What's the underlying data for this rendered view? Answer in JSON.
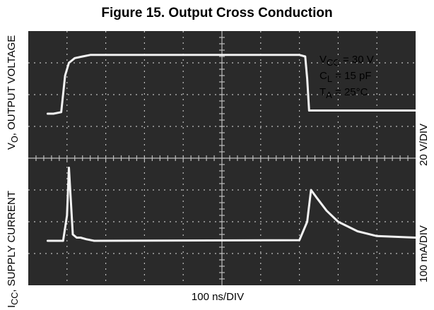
{
  "title": "Figure 15. Output Cross Conduction",
  "x_axis_label": "100 ns/DIV",
  "left_labels": {
    "top_prefix": "V",
    "top_sub": "O",
    "top_suffix": ", OUTPUT VOLTAGE",
    "bottom_prefix": "I",
    "bottom_sub": "CC",
    "bottom_suffix": ", SUPPLY CURRENT"
  },
  "right_labels": {
    "top": "20 V/DIV",
    "bottom": "100 mA/DIV"
  },
  "conditions": [
    {
      "sym": "V",
      "sub": "CC",
      "rest": " = 30 V"
    },
    {
      "sym": "C",
      "sub": "L",
      "rest": " = 15 pF"
    },
    {
      "sym": "T",
      "sub": "A",
      "rest": " = 25°C"
    }
  ],
  "colors": {
    "screen": "#2a2a2a",
    "graticule": "#bdbdbd",
    "trace": "#f2f2f2"
  },
  "chart_data": {
    "type": "line",
    "x_divisions": 10,
    "y_divisions": 8,
    "grid": true,
    "series": [
      {
        "x": [
          0.5,
          0.65,
          0.85,
          0.95,
          1.05,
          1.2,
          1.4,
          1.6,
          2.0,
          5.0,
          7.0,
          7.15,
          7.2,
          7.25,
          7.5,
          10.0
        ],
        "y": [
          5.4,
          5.4,
          5.45,
          6.6,
          7.0,
          7.15,
          7.2,
          7.25,
          7.25,
          7.25,
          7.25,
          7.2,
          6.5,
          5.5,
          5.5,
          5.5
        ]
      },
      {
        "x": [
          0.5,
          0.8,
          0.9,
          1.0,
          1.05,
          1.15,
          1.25,
          1.35,
          1.5,
          1.7,
          7.0,
          7.2,
          7.3,
          7.45,
          7.7,
          8.0,
          8.5,
          9.0,
          10.0
        ],
        "y": [
          1.4,
          1.4,
          1.4,
          2.2,
          3.7,
          1.6,
          1.5,
          1.5,
          1.45,
          1.4,
          1.42,
          2.0,
          3.0,
          2.75,
          2.35,
          2.0,
          1.7,
          1.55,
          1.5
        ]
      }
    ]
  }
}
